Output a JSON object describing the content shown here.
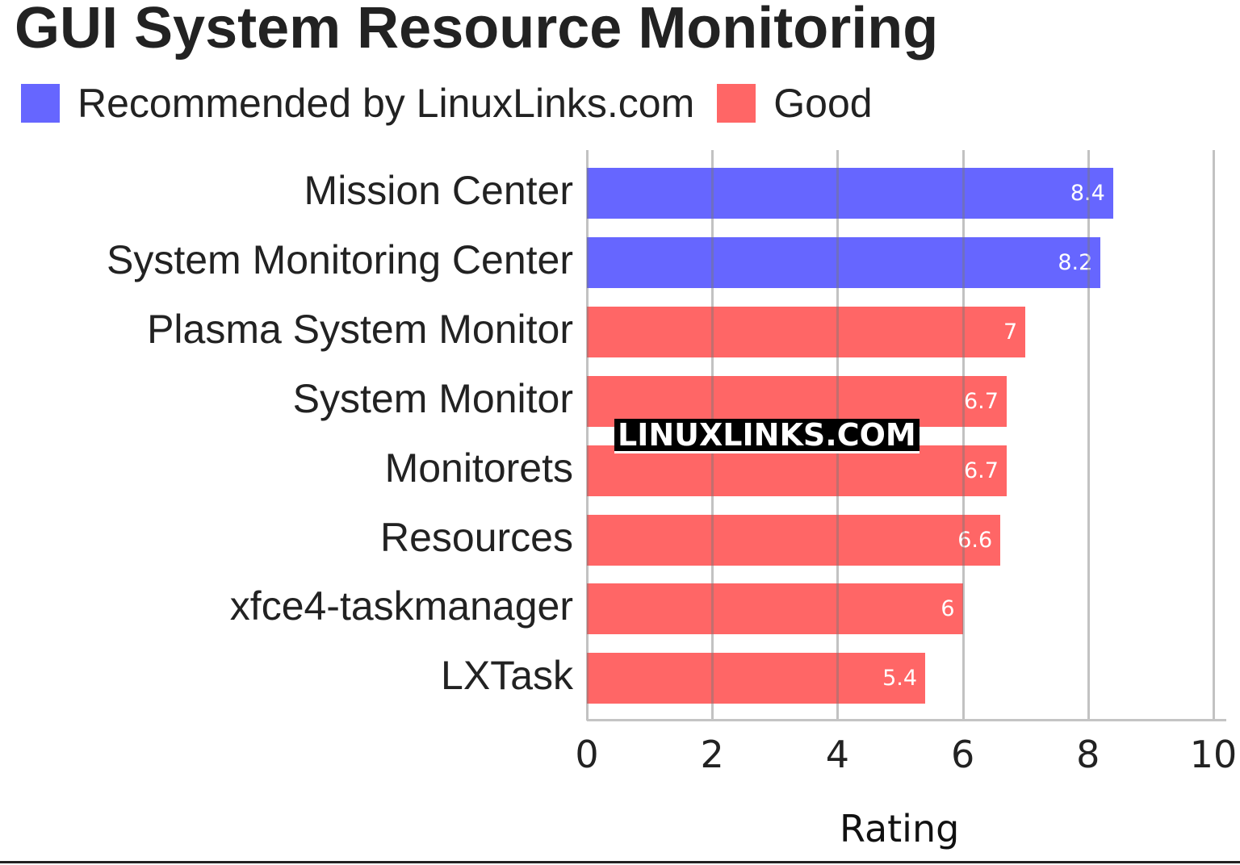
{
  "title": "GUI System Resource Monitoring",
  "legend": [
    {
      "label": "Recommended by LinuxLinks.com",
      "color": "#6666ff"
    },
    {
      "label": "Good",
      "color": "#ff6666"
    }
  ],
  "watermark": "LINUXLINKS.COM",
  "chart_data": {
    "type": "bar",
    "orientation": "horizontal",
    "title": "GUI System Resource Monitoring",
    "xlabel": "Rating",
    "ylabel": "",
    "xlim": [
      0,
      10
    ],
    "x_ticks": [
      "0",
      "2",
      "4",
      "6",
      "8",
      "10"
    ],
    "grid": true,
    "legend_position": "top-left",
    "categories": [
      "Mission Center",
      "System Monitoring Center",
      "Plasma System Monitor",
      "System Monitor",
      "Monitorets",
      "Resources",
      "xfce4-taskmanager",
      "LXTask"
    ],
    "values": [
      8.4,
      8.2,
      7,
      6.7,
      6.7,
      6.6,
      6,
      5.4
    ],
    "value_labels": [
      "8.4",
      "8.2",
      "7",
      "6.7",
      "6.7",
      "6.6",
      "6",
      "5.4"
    ],
    "series_group": [
      "Recommended by LinuxLinks.com",
      "Recommended by LinuxLinks.com",
      "Good",
      "Good",
      "Good",
      "Good",
      "Good",
      "Good"
    ],
    "colors": [
      "#6666ff",
      "#6666ff",
      "#ff6666",
      "#ff6666",
      "#ff6666",
      "#ff6666",
      "#ff6666",
      "#ff6666"
    ]
  }
}
